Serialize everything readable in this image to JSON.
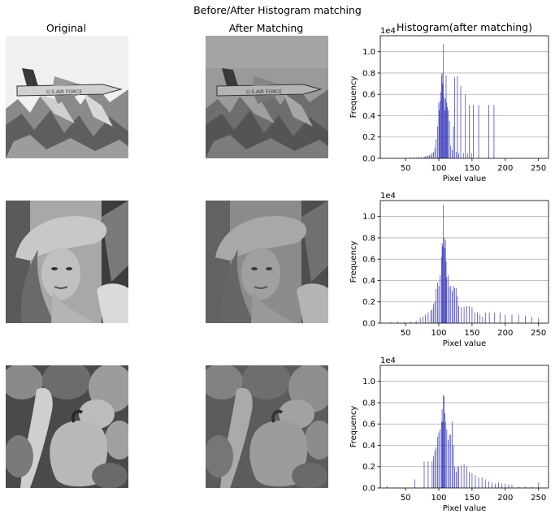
{
  "figure": {
    "suptitle": "Before/After Histogram matching",
    "col_titles": {
      "original": "Original",
      "after": "After Matching",
      "histogram": "Histogram(after matching)"
    },
    "images": [
      {
        "name": "airplane",
        "original_alt": "grayscale photo of a jet fighter flying over snowy mountains",
        "after_alt": "contrast-reduced grayscale photo of a jet fighter over mountains"
      },
      {
        "name": "lena",
        "original_alt": "grayscale portrait of a woman wearing a wide-brimmed hat",
        "after_alt": "contrast-reduced grayscale portrait of a woman wearing a hat"
      },
      {
        "name": "peppers",
        "original_alt": "grayscale photo of a pile of bell peppers",
        "after_alt": "contrast-reduced grayscale photo of bell peppers"
      }
    ],
    "bar_color": "#3f3fbf"
  },
  "chart_data": [
    {
      "type": "bar",
      "title": "Histogram(after matching)",
      "xlabel": "Pixel value",
      "ylabel": "Frequency",
      "y_offset_text": "1e4",
      "xlim": [
        12,
        265
      ],
      "ylim": [
        0,
        1.15
      ],
      "xticks": [
        50,
        100,
        150,
        200,
        250
      ],
      "yticks": [
        0.0,
        0.2,
        0.4,
        0.6,
        0.8,
        1.0
      ],
      "grid": "horizontal",
      "x": [
        28,
        34,
        40,
        46,
        52,
        58,
        62,
        66,
        70,
        74,
        78,
        80,
        82,
        84,
        86,
        88,
        90,
        92,
        94,
        96,
        98,
        100,
        101,
        102,
        103,
        104,
        105,
        106,
        107,
        108,
        109,
        110,
        111,
        112,
        113,
        114,
        116,
        118,
        120,
        122,
        124,
        126,
        128,
        130,
        133,
        137,
        140,
        143,
        146,
        149,
        152,
        160,
        175,
        183
      ],
      "values": [
        0.005,
        0.005,
        0.005,
        0.006,
        0.006,
        0.008,
        0.01,
        0.01,
        0.012,
        0.012,
        0.015,
        0.02,
        0.022,
        0.025,
        0.03,
        0.035,
        0.05,
        0.06,
        0.1,
        0.18,
        0.3,
        0.52,
        0.45,
        0.54,
        0.62,
        0.78,
        0.8,
        0.7,
        1.07,
        0.57,
        0.45,
        0.56,
        0.78,
        0.52,
        0.48,
        0.45,
        0.35,
        0.12,
        0.08,
        0.3,
        0.76,
        0.06,
        0.77,
        0.05,
        0.68,
        0.05,
        0.6,
        0.05,
        0.5,
        0.05,
        0.5,
        0.5,
        0.5,
        0.5
      ]
    },
    {
      "type": "bar",
      "title": "",
      "xlabel": "Pixel value",
      "ylabel": "Frequency",
      "y_offset_text": "1e4",
      "xlim": [
        12,
        265
      ],
      "ylim": [
        0,
        1.15
      ],
      "xticks": [
        50,
        100,
        150,
        200,
        250
      ],
      "yticks": [
        0.0,
        0.2,
        0.4,
        0.6,
        0.8,
        1.0
      ],
      "grid": "horizontal",
      "x": [
        28,
        38,
        48,
        58,
        66,
        72,
        76,
        80,
        84,
        88,
        90,
        92,
        94,
        96,
        98,
        100,
        102,
        104,
        105,
        106,
        107,
        108,
        109,
        110,
        111,
        112,
        114,
        116,
        118,
        120,
        122,
        124,
        126,
        128,
        130,
        134,
        138,
        142,
        146,
        150,
        154,
        158,
        162,
        166,
        170,
        176,
        184,
        192,
        200,
        210,
        220,
        230,
        240,
        250
      ],
      "values": [
        0.01,
        0.015,
        0.01,
        0.015,
        0.02,
        0.05,
        0.06,
        0.08,
        0.1,
        0.12,
        0.13,
        0.18,
        0.2,
        0.32,
        0.38,
        0.35,
        0.45,
        0.62,
        0.75,
        0.72,
        1.11,
        0.8,
        0.7,
        0.78,
        0.58,
        0.43,
        0.45,
        0.34,
        0.35,
        0.3,
        0.35,
        0.33,
        0.33,
        0.25,
        0.16,
        0.15,
        0.15,
        0.16,
        0.16,
        0.15,
        0.1,
        0.1,
        0.08,
        0.06,
        0.1,
        0.1,
        0.1,
        0.1,
        0.08,
        0.08,
        0.08,
        0.07,
        0.06,
        0.05
      ]
    },
    {
      "type": "bar",
      "title": "",
      "xlabel": "Pixel value",
      "ylabel": "Frequency",
      "y_offset_text": "1e4",
      "xlim": [
        12,
        265
      ],
      "ylim": [
        0,
        1.15
      ],
      "xticks": [
        50,
        100,
        150,
        200,
        250
      ],
      "yticks": [
        0.0,
        0.2,
        0.4,
        0.6,
        0.8,
        1.0
      ],
      "grid": "horizontal",
      "x": [
        22,
        40,
        64,
        78,
        84,
        90,
        92,
        94,
        96,
        98,
        100,
        102,
        104,
        105,
        106,
        107,
        108,
        109,
        110,
        112,
        114,
        116,
        118,
        120,
        122,
        124,
        126,
        128,
        130,
        134,
        138,
        142,
        146,
        150,
        155,
        160,
        165,
        170,
        175,
        180,
        185,
        190,
        195,
        200,
        205,
        210,
        220,
        230,
        240,
        250
      ],
      "values": [
        0.02,
        0.005,
        0.08,
        0.25,
        0.25,
        0.25,
        0.3,
        0.35,
        0.38,
        0.48,
        0.52,
        0.55,
        0.62,
        0.74,
        0.62,
        0.87,
        0.86,
        0.7,
        0.62,
        0.55,
        0.45,
        0.5,
        0.5,
        0.62,
        0.4,
        0.2,
        0.15,
        0.2,
        0.2,
        0.21,
        0.22,
        0.2,
        0.15,
        0.14,
        0.12,
        0.1,
        0.1,
        0.08,
        0.06,
        0.05,
        0.04,
        0.05,
        0.04,
        0.04,
        0.03,
        0.03,
        0.01,
        0.01,
        0.01,
        0.05
      ]
    }
  ]
}
